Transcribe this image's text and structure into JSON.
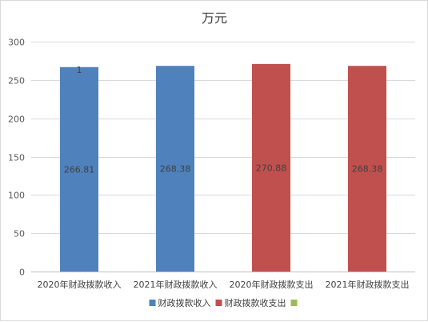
{
  "chart_data": {
    "type": "bar",
    "title": "万元",
    "categories": [
      "2020年财政拨款收入",
      "2021年财政拨款收入",
      "2020年财政拨款支出",
      "2021年财政拨款支出"
    ],
    "series": [
      {
        "name": "财政拨款收入",
        "color": "#4f81bd",
        "values": [
          266.81,
          268.38,
          null,
          null
        ]
      },
      {
        "name": "财政拨款收支出",
        "color": "#c0504d",
        "values": [
          null,
          null,
          270.88,
          268.38
        ]
      },
      {
        "name": "",
        "color": "#9bbb59",
        "values": [
          null,
          null,
          null,
          null
        ]
      }
    ],
    "value_labels": [
      "266.81",
      "268.38",
      "270.88",
      "268.38"
    ],
    "annotations": [
      {
        "text": "1",
        "category": "2020年财政拨款收入"
      }
    ],
    "ylim": [
      0,
      300
    ],
    "yticks": [
      0,
      50,
      100,
      150,
      200,
      250,
      300
    ],
    "grid": true,
    "legend_position": "bottom"
  }
}
